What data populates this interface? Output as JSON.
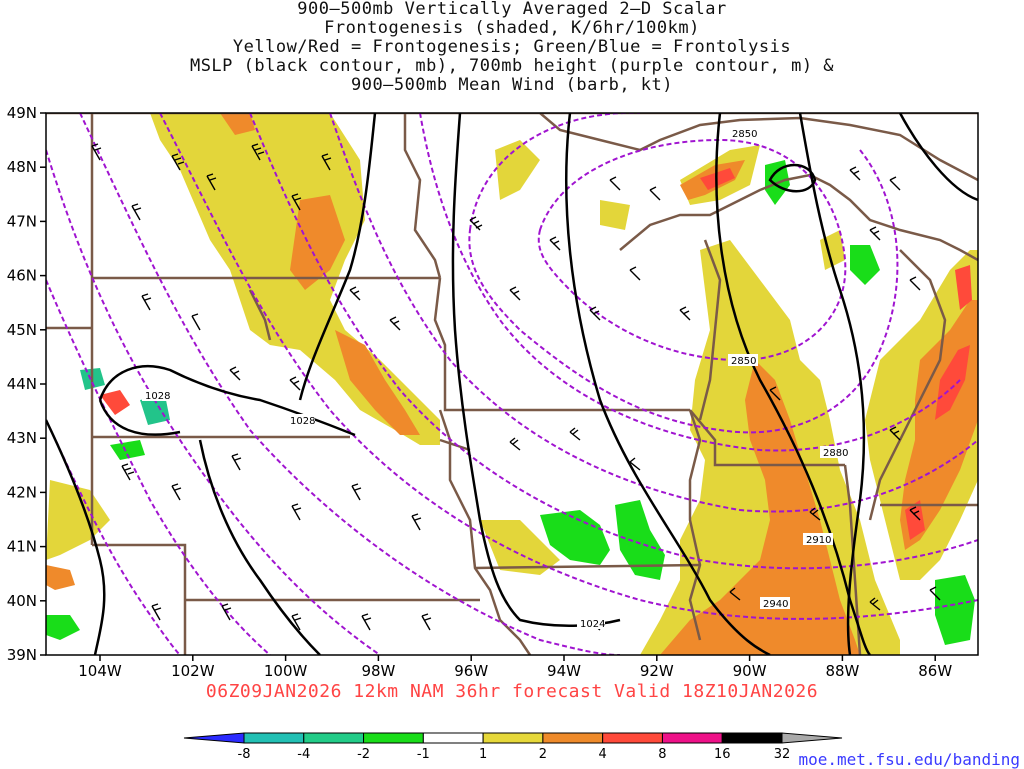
{
  "title_lines": [
    "900—500mb Vertically Averaged 2—D Scalar",
    "Frontogenesis (shaded, K/6hr/100km)",
    "Yellow/Red = Frontogenesis;  Green/Blue = Frontolysis",
    "MSLP (black contour, mb), 700mb height (purple contour, m) &",
    "900—500mb Mean Wind (barb, kt)"
  ],
  "footer": "06Z09JAN2026 12km NAM 36hr forecast Valid 18Z10JAN2026",
  "website": "moe.met.fsu.edu/banding",
  "map": {
    "lat_labels": [
      "49N",
      "48N",
      "47N",
      "46N",
      "45N",
      "44N",
      "43N",
      "42N",
      "41N",
      "40N",
      "39N"
    ],
    "lon_labels": [
      "104W",
      "102W",
      "100W",
      "98W",
      "96W",
      "94W",
      "92W",
      "90W",
      "88W",
      "86W"
    ],
    "mslp_labels": [
      "1028",
      "1028",
      "1024"
    ],
    "height_labels": [
      "2850",
      "2850",
      "2880",
      "2910",
      "2940"
    ]
  },
  "colorbar": {
    "labels": [
      "-8",
      "-4",
      "-2",
      "-1",
      "1",
      "2",
      "4",
      "8",
      "16",
      "32"
    ],
    "colors": [
      "#2b2bff",
      "#22c0b4",
      "#22cc88",
      "#19dd19",
      "#ffffff",
      "#e6d83a",
      "#ee8a2a",
      "#ff4a3a",
      "#ee1188",
      "#000000",
      "#aaaaaa"
    ]
  },
  "colors": {
    "frontogenesis_yellow": "#e3d63a",
    "frontogenesis_orange": "#ef8a2b",
    "frontogenesis_red": "#ff4a3a",
    "frontolysis_green": "#19dd19",
    "frontolysis_teal": "#22c48a",
    "borders": "#7a5a48",
    "height_contour": "#a014d0",
    "mslp_contour": "#000000",
    "footer_text": "#ff4444",
    "website_text": "#3a3aff"
  }
}
